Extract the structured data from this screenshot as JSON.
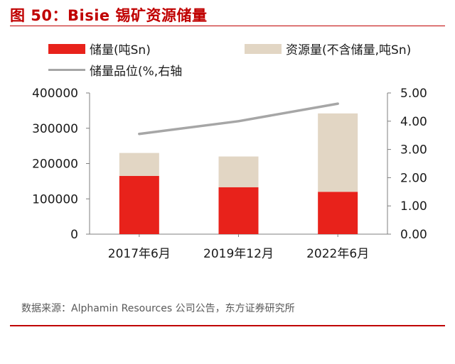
{
  "title": "图 50：Bisie 锡矿资源储量",
  "source": "数据来源：Alphamin Resources 公司公告，东方证券研究所",
  "colors": {
    "accent": "#c00000",
    "reserves": "#e8221b",
    "resources": "#e2d6c4",
    "grade": "#a6a6a6",
    "axis": "#7f7f7f"
  },
  "chart_data": {
    "type": "bar",
    "stacked": true,
    "categories": [
      "2017年6月",
      "2019年12月",
      "2022年6月"
    ],
    "series": [
      {
        "name": "储量(吨Sn)",
        "type": "bar",
        "axis": "left",
        "values": [
          165000,
          133000,
          120000
        ]
      },
      {
        "name": "资源量(不含储量,吨Sn)",
        "type": "bar",
        "axis": "left",
        "values": [
          65000,
          87000,
          222000
        ]
      },
      {
        "name": "储量品位(%,右轴",
        "type": "line",
        "axis": "right",
        "values": [
          3.55,
          4.0,
          4.62
        ]
      }
    ],
    "y_left": {
      "min": 0,
      "max": 400000,
      "ticks": [
        "0",
        "100000",
        "200000",
        "300000",
        "400000"
      ]
    },
    "y_right": {
      "min": 0,
      "max": 5,
      "ticks": [
        "0.00",
        "1.00",
        "2.00",
        "3.00",
        "4.00",
        "5.00"
      ]
    },
    "grid": false,
    "legend_position": "top"
  }
}
